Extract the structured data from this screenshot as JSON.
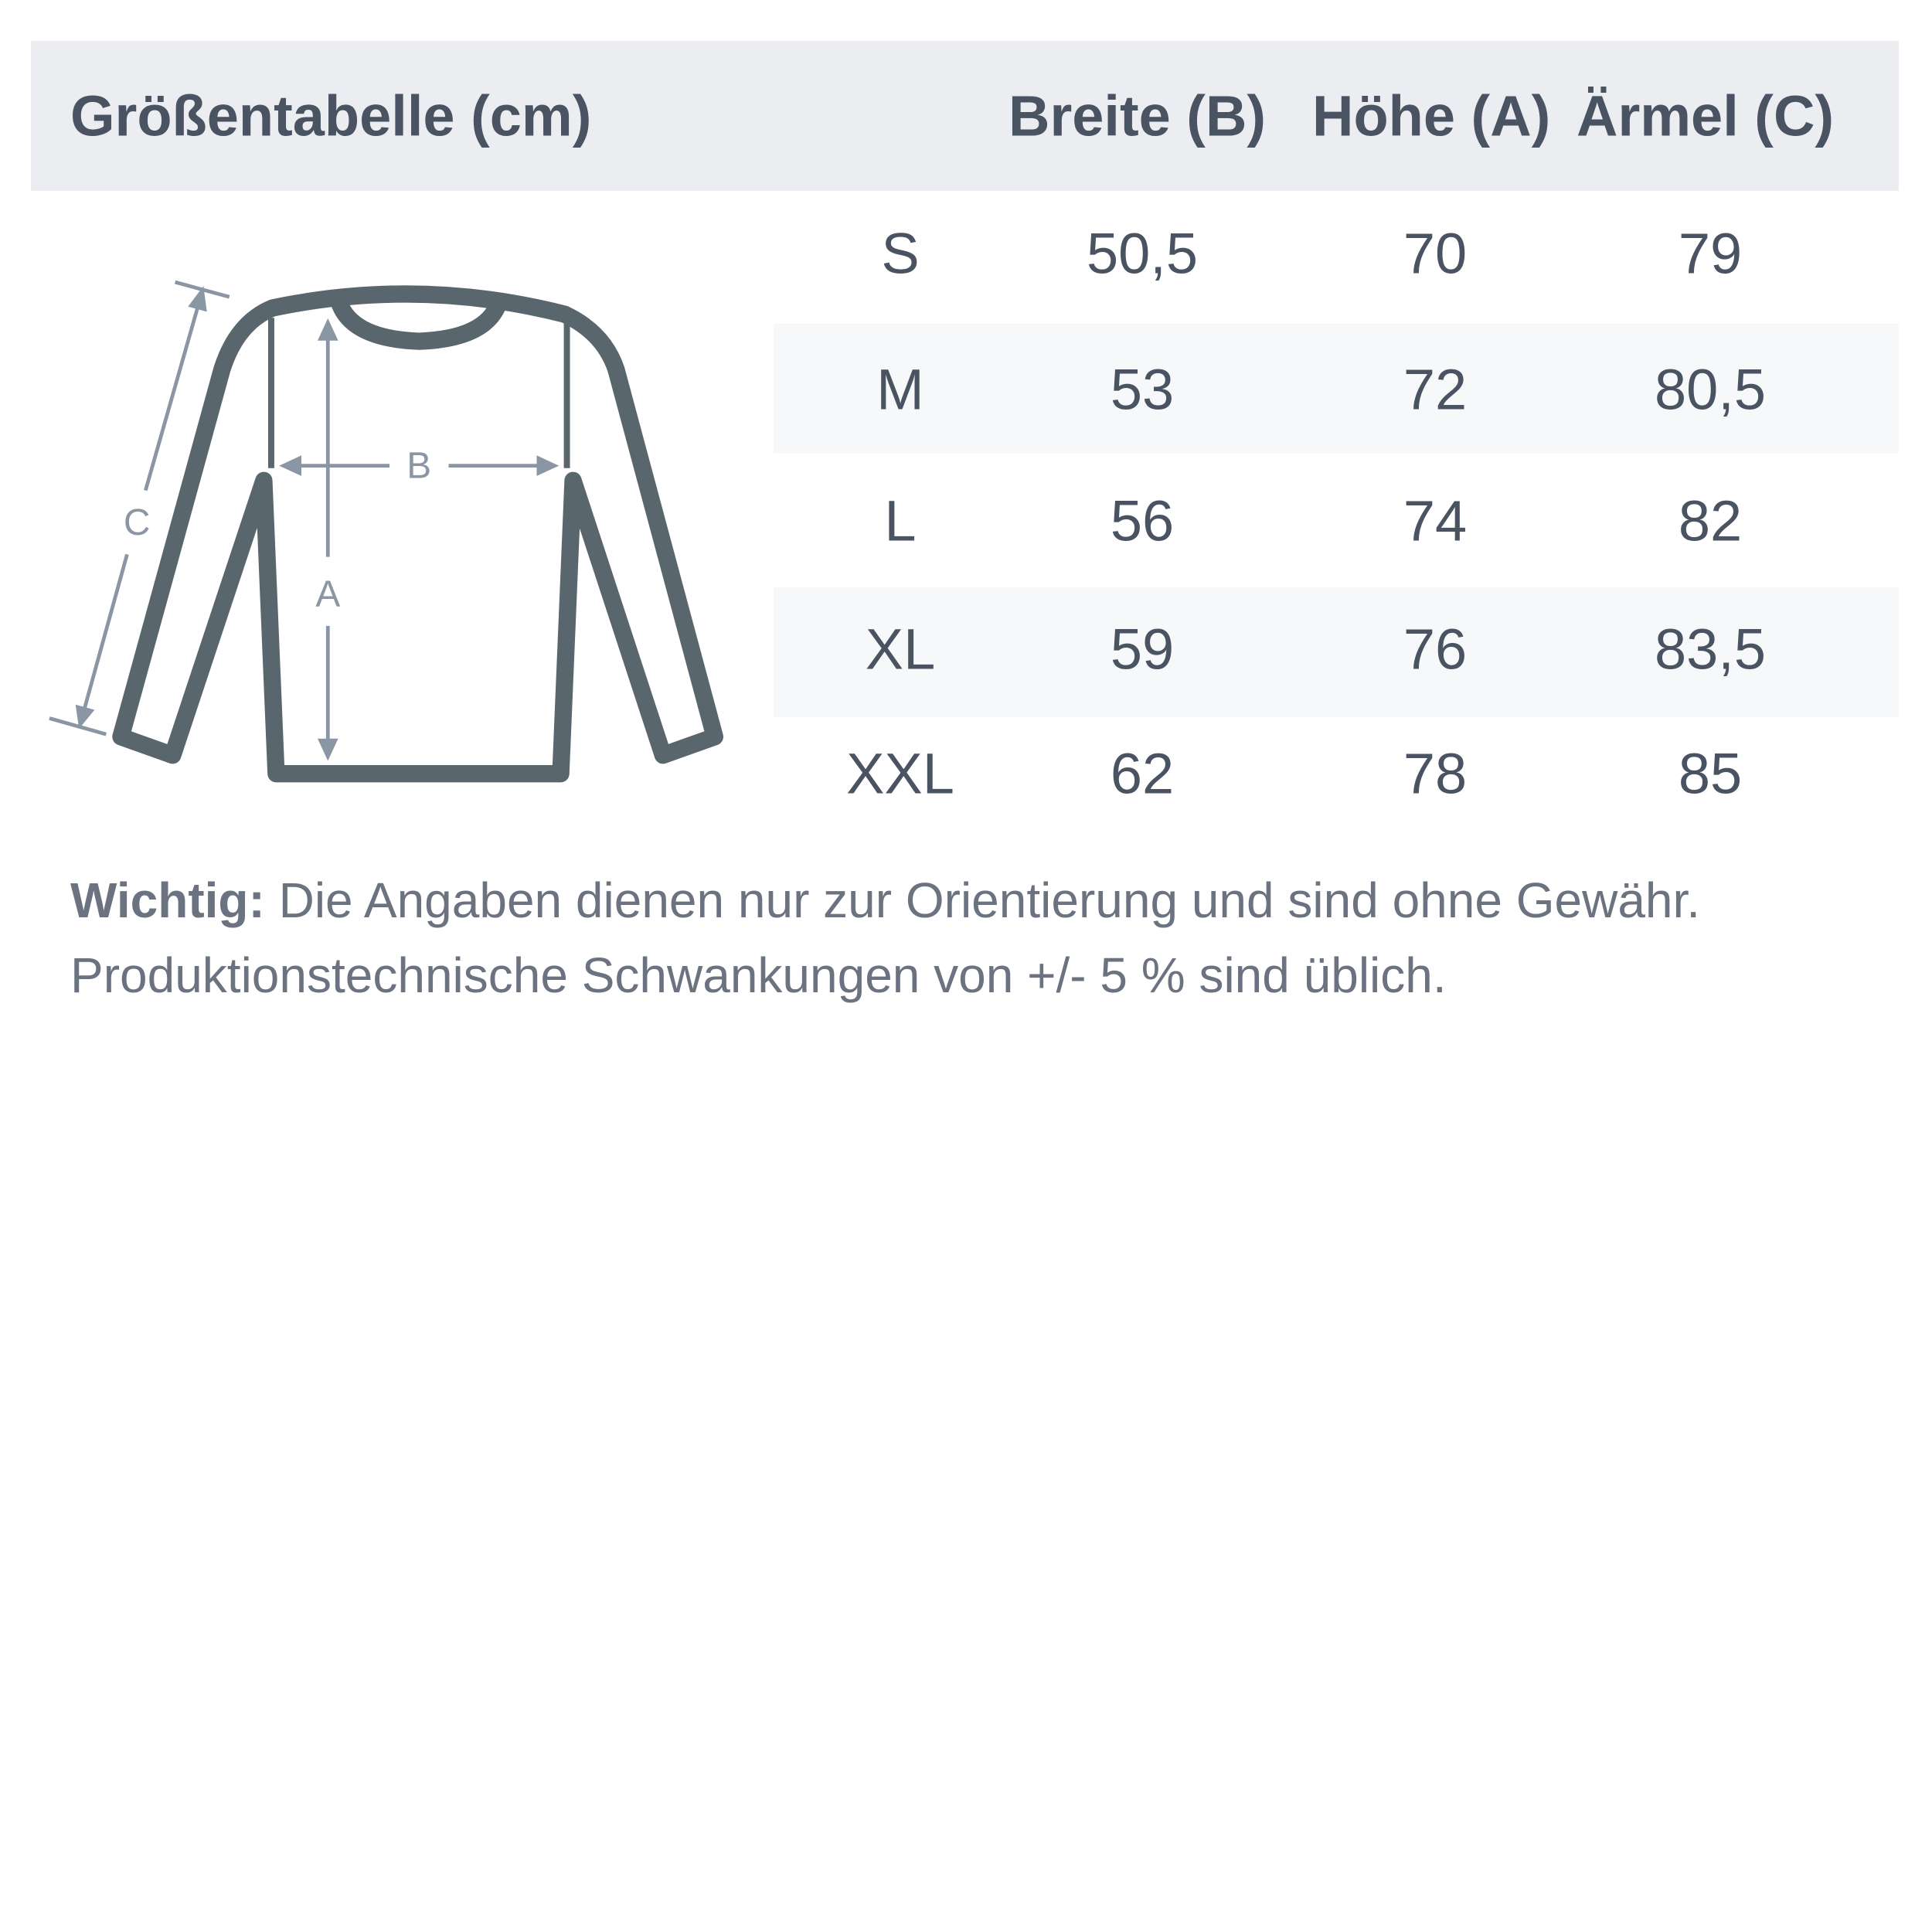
{
  "header": {
    "title": "Größentabelle (cm)",
    "columns": [
      "Breite (B)",
      "Höhe (A)",
      "Ärmel (C)"
    ]
  },
  "rows": [
    {
      "size": "S",
      "breite": "50,5",
      "hoehe": "70",
      "aermel": "79"
    },
    {
      "size": "M",
      "breite": "53",
      "hoehe": "72",
      "aermel": "80,5"
    },
    {
      "size": "L",
      "breite": "56",
      "hoehe": "74",
      "aermel": "82"
    },
    {
      "size": "XL",
      "breite": "59",
      "hoehe": "76",
      "aermel": "83,5"
    },
    {
      "size": "XXL",
      "breite": "62",
      "hoehe": "78",
      "aermel": "85"
    }
  ],
  "diagram": {
    "label_a": "A",
    "label_b": "B",
    "label_c": "C",
    "icon": "longsleeve-shirt-icon"
  },
  "note": {
    "bold": "Wichtig:",
    "line1": " Die Angaben dienen nur zur Orientierung und sind ohne Gewähr.",
    "line2": "Produktionstechnische Schwankungen von +/- 5 % sind üblich."
  },
  "colors": {
    "header_bg": "#ebedf0",
    "text": "#4a5361",
    "shirt": "#5a666d",
    "measure": "#8a96a3"
  }
}
